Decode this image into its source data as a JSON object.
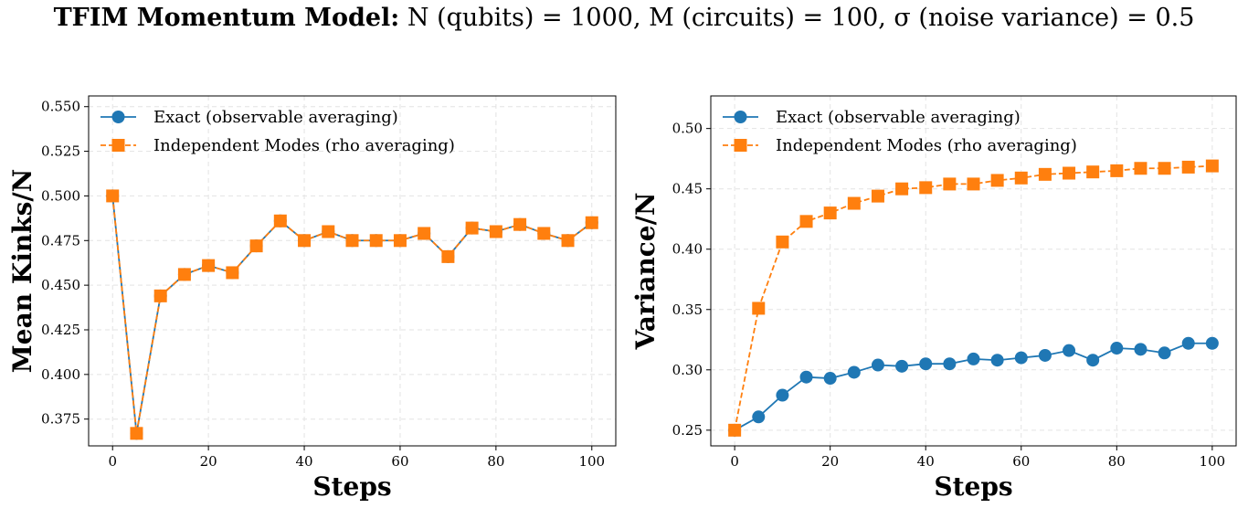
{
  "title": {
    "prefix": "TFIM Momentum Model:",
    "rest": "N (qubits) = 1000, M (circuits) = 100, σ (noise variance) = 0.5"
  },
  "colors": {
    "exact": "#1f77b4",
    "independent": "#ff7f0e"
  },
  "chart_data": [
    {
      "type": "line",
      "xlabel": "Steps",
      "ylabel": "Mean Kinks/N",
      "xlim": [
        -5,
        105
      ],
      "ylim": [
        0.36,
        0.556
      ],
      "xticks": [
        0,
        20,
        40,
        60,
        80,
        100
      ],
      "yticks": [
        0.375,
        0.4,
        0.425,
        0.45,
        0.475,
        0.5,
        0.525,
        0.55
      ],
      "ytick_labels": [
        "0.375",
        "0.400",
        "0.425",
        "0.450",
        "0.475",
        "0.500",
        "0.525",
        "0.550"
      ],
      "grid": true,
      "legend": "top-left",
      "x": [
        0,
        5,
        10,
        15,
        20,
        25,
        30,
        35,
        40,
        45,
        50,
        55,
        60,
        65,
        70,
        75,
        80,
        85,
        90,
        95,
        100
      ],
      "series": [
        {
          "name": "Exact (observable averaging)",
          "marker": "circle",
          "style": "solid",
          "color": "#1f77b4",
          "values": [
            0.5,
            0.367,
            0.444,
            0.456,
            0.461,
            0.457,
            0.472,
            0.486,
            0.475,
            0.48,
            0.475,
            0.475,
            0.475,
            0.479,
            0.466,
            0.482,
            0.48,
            0.484,
            0.479,
            0.475,
            0.485
          ]
        },
        {
          "name": "Independent Modes (rho averaging)",
          "marker": "square",
          "style": "dashed",
          "color": "#ff7f0e",
          "values": [
            0.5,
            0.367,
            0.444,
            0.456,
            0.461,
            0.457,
            0.472,
            0.486,
            0.475,
            0.48,
            0.475,
            0.475,
            0.475,
            0.479,
            0.466,
            0.482,
            0.48,
            0.484,
            0.479,
            0.475,
            0.485
          ]
        }
      ]
    },
    {
      "type": "line",
      "xlabel": "Steps",
      "ylabel": "Variance/N",
      "xlim": [
        -5,
        105
      ],
      "ylim": [
        0.237,
        0.527
      ],
      "xticks": [
        0,
        20,
        40,
        60,
        80,
        100
      ],
      "yticks": [
        0.25,
        0.3,
        0.35,
        0.4,
        0.45,
        0.5
      ],
      "ytick_labels": [
        "0.25",
        "0.30",
        "0.35",
        "0.40",
        "0.45",
        "0.50"
      ],
      "grid": true,
      "legend": "top-left",
      "x": [
        0,
        5,
        10,
        15,
        20,
        25,
        30,
        35,
        40,
        45,
        50,
        55,
        60,
        65,
        70,
        75,
        80,
        85,
        90,
        95,
        100
      ],
      "series": [
        {
          "name": "Exact (observable averaging)",
          "marker": "circle",
          "style": "solid",
          "color": "#1f77b4",
          "values": [
            0.25,
            0.261,
            0.279,
            0.294,
            0.293,
            0.298,
            0.304,
            0.303,
            0.305,
            0.305,
            0.309,
            0.308,
            0.31,
            0.312,
            0.316,
            0.308,
            0.318,
            0.317,
            0.314,
            0.322,
            0.322
          ]
        },
        {
          "name": "Independent Modes (rho averaging)",
          "marker": "square",
          "style": "dashed",
          "color": "#ff7f0e",
          "values": [
            0.25,
            0.351,
            0.406,
            0.423,
            0.43,
            0.438,
            0.444,
            0.45,
            0.451,
            0.454,
            0.454,
            0.457,
            0.459,
            0.462,
            0.463,
            0.464,
            0.465,
            0.467,
            0.467,
            0.468,
            0.469
          ]
        }
      ]
    }
  ]
}
